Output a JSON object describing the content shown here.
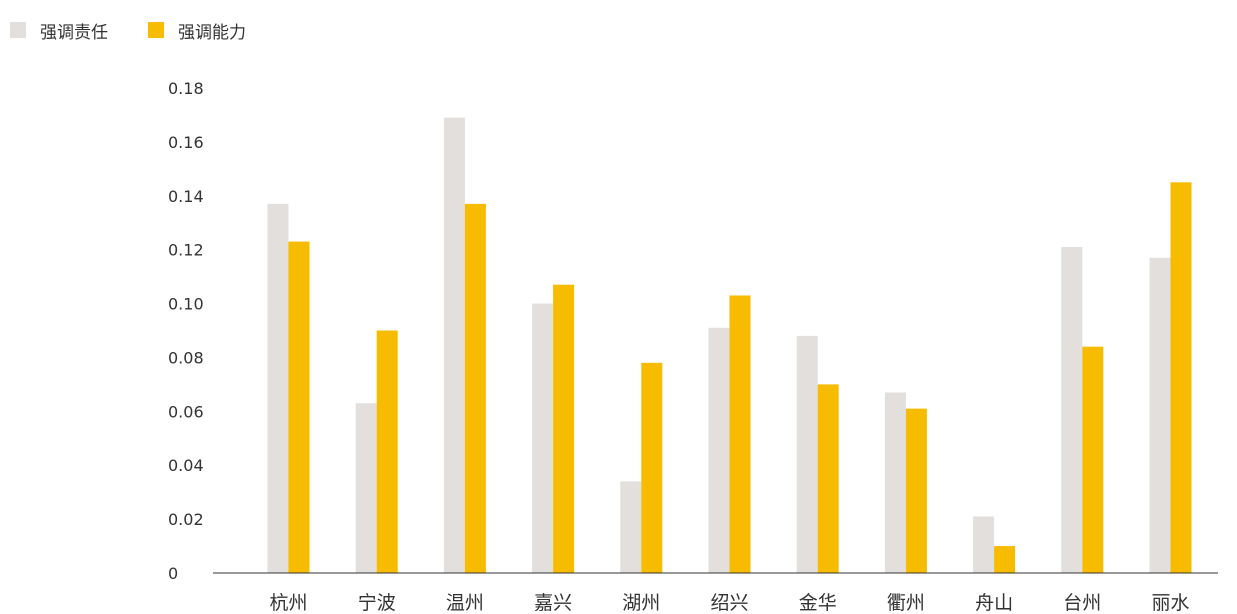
{
  "chart_data": {
    "type": "bar",
    "title": "",
    "xlabel": "",
    "ylabel": "",
    "ylim": [
      0,
      0.18
    ],
    "yticks": [
      "0",
      "0.02",
      "0.04",
      "0.06",
      "0.08",
      "0.10",
      "0.12",
      "0.14",
      "0.16",
      "0.18"
    ],
    "grid": false,
    "legend_position": "top-left",
    "categories": [
      "杭州",
      "宁波",
      "温州",
      "嘉兴",
      "湖州",
      "绍兴",
      "金华",
      "衢州",
      "舟山",
      "台州",
      "丽水"
    ],
    "series": [
      {
        "name": "强调责任",
        "color": "#e2dfdc",
        "values": [
          0.137,
          0.063,
          0.169,
          0.1,
          0.034,
          0.091,
          0.088,
          0.067,
          0.021,
          0.121,
          0.117
        ]
      },
      {
        "name": "强调能力",
        "color": "#f7bb00",
        "values": [
          0.123,
          0.09,
          0.137,
          0.107,
          0.078,
          0.103,
          0.07,
          0.061,
          0.01,
          0.084,
          0.145
        ]
      }
    ]
  }
}
